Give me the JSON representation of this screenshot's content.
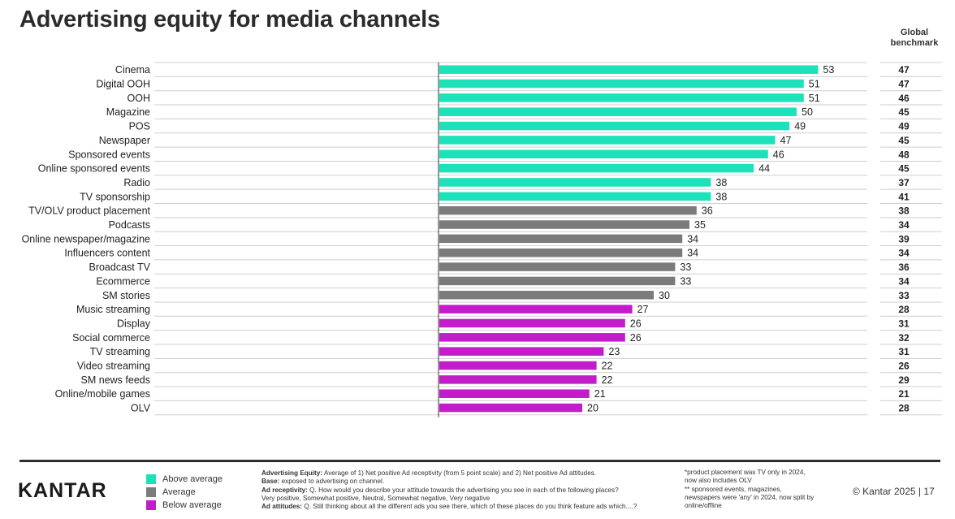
{
  "title": "Advertising equity for media channels",
  "benchmark_header": [
    "Global",
    "benchmark"
  ],
  "colors": {
    "above": "#1de2b9",
    "average": "#7b7b7b",
    "below": "#c31ccb"
  },
  "chart_data": {
    "type": "bar",
    "orientation": "horizontal",
    "categories": [
      "Cinema",
      "Digital OOH",
      "OOH",
      "Magazine",
      "POS",
      "Newspaper",
      "Sponsored events",
      "Online sponsored events",
      "Radio",
      "TV sponsorship",
      "TV/OLV product placement",
      "Podcasts",
      "Online newspaper/magazine",
      "Influencers content",
      "Broadcast TV",
      "Ecommerce",
      "SM stories",
      "Music streaming",
      "Display",
      "Social commerce",
      "TV streaming",
      "Video streaming",
      "SM news feeds",
      "Online/mobile games",
      "OLV"
    ],
    "values": [
      53,
      51,
      51,
      50,
      49,
      47,
      46,
      44,
      38,
      38,
      36,
      35,
      34,
      34,
      33,
      33,
      30,
      27,
      26,
      26,
      23,
      22,
      22,
      21,
      20
    ],
    "group": [
      "above",
      "above",
      "above",
      "above",
      "above",
      "above",
      "above",
      "above",
      "above",
      "above",
      "average",
      "average",
      "average",
      "average",
      "average",
      "average",
      "average",
      "below",
      "below",
      "below",
      "below",
      "below",
      "below",
      "below",
      "below"
    ],
    "benchmark": [
      47,
      47,
      46,
      45,
      49,
      45,
      48,
      45,
      37,
      41,
      38,
      34,
      39,
      34,
      36,
      34,
      33,
      28,
      31,
      32,
      31,
      26,
      29,
      21,
      28
    ],
    "xlim": [
      0,
      60
    ]
  },
  "legend": [
    {
      "key": "above",
      "label": "Above average"
    },
    {
      "key": "average",
      "label": "Average"
    },
    {
      "key": "below",
      "label": "Below average"
    }
  ],
  "logo": "KANTAR",
  "notes": {
    "equity_label": "Advertising Equity:",
    "equity_text": " Average of 1) Net positive Ad receptivity (from 5 point scale) and 2) Net positive Ad attitudes.",
    "base_label": "Base:",
    "base_text": " exposed to advertising on channel.",
    "receptivity_label": "Ad receptivity:",
    "receptivity_text": " Q. How would you describe your attitude towards the advertising you see in each of the following places?",
    "receptivity_scale": "Very positive, Somewhat positive, Neutral, Somewhat negative, Very negative",
    "attitudes_label": "Ad attitudes:",
    "attitudes_text": " Q. Still thinking about all the different ads you see there, which of these places do you think feature ads which....?"
  },
  "footnotes": [
    "*product placement was TV only in 2024,",
    "now also includes OLV",
    "** sponsored events, magazines,",
    "newspapers were 'any' in 2024, now split by",
    "online/offline"
  ],
  "copyright": "© Kantar 2025 | 17"
}
